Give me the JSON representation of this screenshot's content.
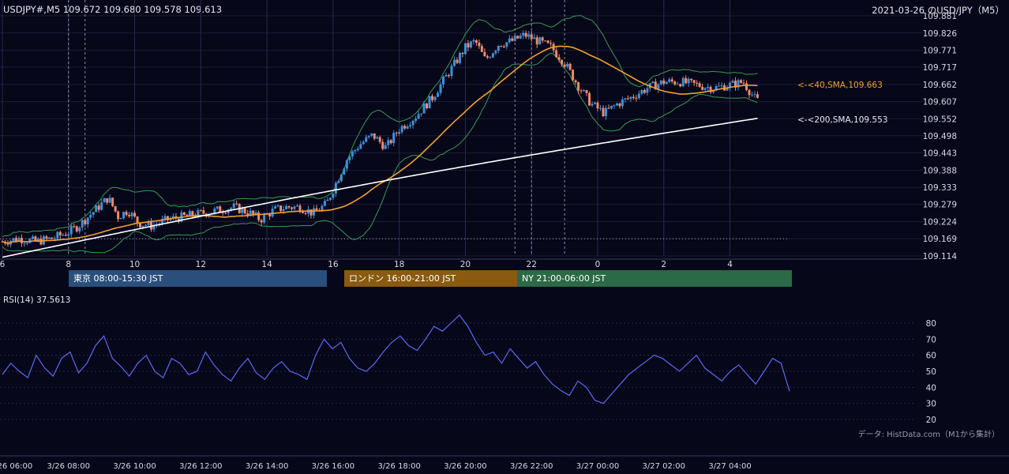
{
  "header": {
    "ohlc": "USDJPY#,M5 109.672 109.680 109.578 109.613",
    "title": "2021-03-26 のUSD/JPY（M5）"
  },
  "colors": {
    "background": "#07071a",
    "candle_up": "#3f8fd8",
    "candle_down": "#f08a6a",
    "sma40": "#f0a030",
    "sma200": "#ffffff",
    "bollinger": "#3a9a50",
    "rsi": "#5a6af0"
  },
  "annotations": {
    "sma40": "<-<40,SMA,109.663",
    "sma200": "<-<200,SMA,109.553"
  },
  "sessions": {
    "tokyo": "東京 08:00-15:30 JST",
    "london": "ロンドン 16:00-21:00 JST",
    "ny": "NY 21:00-06:00 JST"
  },
  "rsi": {
    "label": "RSI(14) 37.5613"
  },
  "source": "データ: HistData.com（M1から集計）",
  "chart_data": [
    {
      "type": "candlestick",
      "title": "2021-03-26 のUSD/JPY（M5）",
      "symbol": "USDJPY#,M5",
      "last_ohlc": {
        "open": 109.672,
        "high": 109.68,
        "low": 109.578,
        "close": 109.613
      },
      "y_ticks": [
        109.881,
        109.826,
        109.771,
        109.717,
        109.662,
        109.607,
        109.552,
        109.498,
        109.443,
        109.388,
        109.333,
        109.279,
        109.224,
        109.169,
        109.114
      ],
      "ylim": [
        109.114,
        109.881
      ],
      "x_ticks": [
        "6",
        "8",
        "10",
        "12",
        "14",
        "16",
        "18",
        "20",
        "22",
        "0",
        "2",
        "4"
      ],
      "x_hours": [
        6,
        8,
        10,
        12,
        14,
        16,
        18,
        20,
        22,
        24,
        26,
        28
      ],
      "series_close": [
        [
          6.0,
          109.16
        ],
        [
          6.5,
          109.17
        ],
        [
          7.0,
          109.16
        ],
        [
          7.5,
          109.17
        ],
        [
          8.0,
          109.19
        ],
        [
          8.3,
          109.21
        ],
        [
          8.6,
          109.24
        ],
        [
          8.9,
          109.27
        ],
        [
          9.2,
          109.3
        ],
        [
          9.5,
          109.24
        ],
        [
          9.8,
          109.26
        ],
        [
          10.1,
          109.22
        ],
        [
          10.5,
          109.21
        ],
        [
          11.0,
          109.23
        ],
        [
          11.5,
          109.24
        ],
        [
          12.0,
          109.25
        ],
        [
          12.5,
          109.26
        ],
        [
          13.0,
          109.27
        ],
        [
          13.5,
          109.25
        ],
        [
          13.8,
          109.23
        ],
        [
          14.2,
          109.26
        ],
        [
          14.6,
          109.27
        ],
        [
          15.0,
          109.27
        ],
        [
          15.4,
          109.25
        ],
        [
          15.8,
          109.28
        ],
        [
          16.1,
          109.35
        ],
        [
          16.4,
          109.42
        ],
        [
          16.8,
          109.47
        ],
        [
          17.2,
          109.5
        ],
        [
          17.6,
          109.46
        ],
        [
          18.0,
          109.52
        ],
        [
          18.5,
          109.56
        ],
        [
          19.0,
          109.62
        ],
        [
          19.5,
          109.7
        ],
        [
          20.0,
          109.78
        ],
        [
          20.3,
          109.8
        ],
        [
          20.6,
          109.74
        ],
        [
          21.0,
          109.79
        ],
        [
          21.4,
          109.8
        ],
        [
          21.8,
          109.82
        ],
        [
          22.2,
          109.8
        ],
        [
          22.6,
          109.78
        ],
        [
          23.0,
          109.73
        ],
        [
          23.4,
          109.66
        ],
        [
          23.8,
          109.6
        ],
        [
          24.2,
          109.57
        ],
        [
          24.6,
          109.6
        ],
        [
          25.0,
          109.62
        ],
        [
          25.5,
          109.65
        ],
        [
          26.0,
          109.67
        ],
        [
          26.5,
          109.67
        ],
        [
          27.0,
          109.66
        ],
        [
          27.5,
          109.65
        ],
        [
          28.0,
          109.66
        ],
        [
          28.4,
          109.67
        ],
        [
          28.8,
          109.61
        ]
      ],
      "sma40": {
        "name": "40,SMA",
        "last": 109.663
      },
      "sma200": {
        "name": "200,SMA",
        "last": 109.553
      },
      "reference_line": 109.169,
      "grid": true
    },
    {
      "type": "line",
      "title": "RSI(14) 37.5613",
      "y_ticks": [
        80,
        70,
        60,
        50,
        40,
        30,
        20
      ],
      "ylim": [
        20,
        80
      ],
      "x_ticks": [
        "3/26 06:00",
        "3/26 08:00",
        "3/26 10:00",
        "3/26 12:00",
        "3/26 14:00",
        "3/26 16:00",
        "3/26 18:00",
        "3/26 20:00",
        "3/26 22:00",
        "3/27 00:00",
        "3/27 02:00",
        "3/27 04:00"
      ],
      "values": [
        48,
        55,
        50,
        46,
        60,
        52,
        47,
        58,
        62,
        49,
        55,
        66,
        72,
        58,
        53,
        47,
        55,
        60,
        50,
        46,
        58,
        55,
        48,
        50,
        62,
        54,
        48,
        44,
        52,
        58,
        49,
        45,
        52,
        56,
        50,
        48,
        45,
        60,
        70,
        64,
        68,
        58,
        52,
        50,
        55,
        62,
        68,
        72,
        66,
        63,
        70,
        78,
        75,
        80,
        85,
        78,
        68,
        60,
        62,
        55,
        64,
        58,
        52,
        56,
        48,
        42,
        38,
        35,
        44,
        40,
        32,
        30,
        36,
        42,
        48,
        52,
        56,
        60,
        58,
        54,
        50,
        55,
        60,
        52,
        48,
        44,
        50,
        54,
        48,
        42,
        50,
        58,
        55,
        37.56
      ]
    }
  ]
}
